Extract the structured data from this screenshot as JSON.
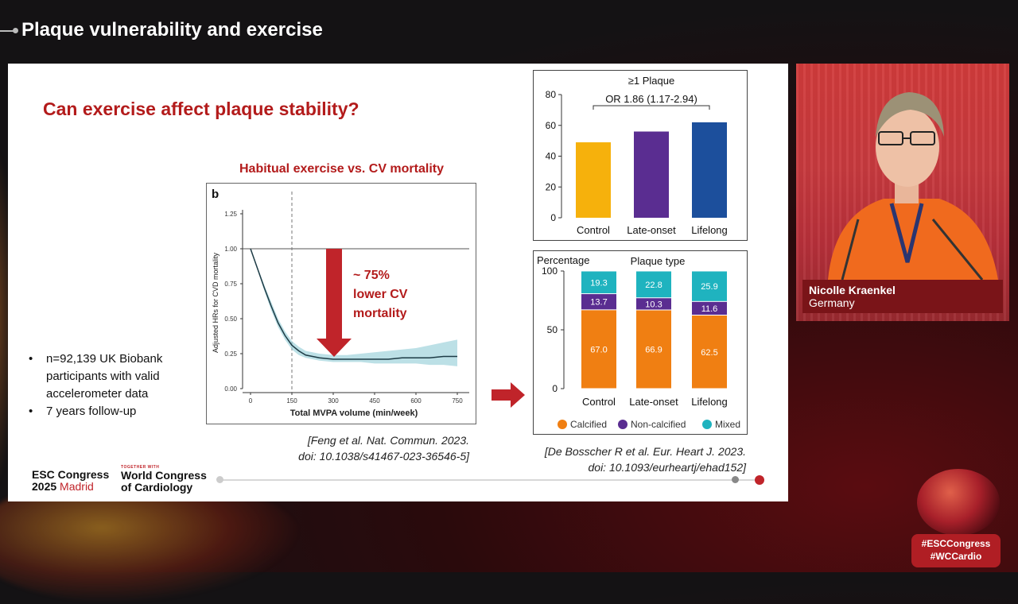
{
  "header": {
    "title": "Plaque vulnerability and exercise"
  },
  "slide": {
    "question": "Can exercise affect plaque stability?",
    "bullets": [
      "n=92,139 UK Biobank participants with valid accelerometer data",
      "7 years follow-up"
    ],
    "curve_chart": {
      "title": "Habitual exercise vs. CV mortality",
      "panel_label": "b",
      "annotation_line1": "~ 75%",
      "annotation_line2": "lower CV",
      "annotation_line3": "mortality",
      "citation_line1": "[Feng et al. Nat. Commun. 2023.",
      "citation_line2": "doi: 10.1038/s41467-023-36546-5]"
    },
    "bar_chart": {
      "citation_line1": "[De Bosscher R et al. Eur. Heart J. 2023.",
      "citation_line2": "doi: 10.1093/eurheartj/ehad152]"
    },
    "logo": {
      "esc_line1": "ESC Congress",
      "esc_line2_year": "2025",
      "esc_line2_city": "Madrid",
      "wcc_small": "TOGETHER WITH",
      "wcc_line1": "World Congress",
      "wcc_line2": "of Cardiology"
    }
  },
  "video": {
    "speaker_name": "Nicolle Kraenkel",
    "speaker_country": "Germany"
  },
  "hashtags": {
    "line1": "#ESCCongress",
    "line2": "#WCCardio"
  },
  "colors": {
    "accent_red": "#b31b1b",
    "calcified": "#f07f12",
    "non_calcified": "#5a2d91",
    "mixed": "#1fb3bf",
    "control": "#f6b10c",
    "late_onset": "#5a2d91",
    "lifelong": "#1c4f9c"
  },
  "chart_data": [
    {
      "type": "line",
      "title": "Habitual exercise vs. CV mortality",
      "xlabel": "Total MVPA volume (min/week)",
      "ylabel": "Adjusted HRs for CVD mortality",
      "xticks": [
        0,
        150,
        300,
        450,
        600,
        750
      ],
      "yticks": [
        "0.00",
        "0.25",
        "0.50",
        "0.75",
        "1.00",
        "1.25"
      ],
      "xlim": [
        0,
        750
      ],
      "ylim": [
        0,
        1.25
      ],
      "reference_line_x": 150,
      "reference_line_y": 1.0,
      "x": [
        0,
        25,
        50,
        75,
        100,
        125,
        150,
        175,
        200,
        250,
        300,
        350,
        400,
        450,
        500,
        550,
        600,
        650,
        700,
        750
      ],
      "y": [
        1.0,
        0.86,
        0.72,
        0.59,
        0.47,
        0.38,
        0.31,
        0.27,
        0.24,
        0.22,
        0.21,
        0.21,
        0.21,
        0.21,
        0.21,
        0.22,
        0.22,
        0.22,
        0.23,
        0.23
      ],
      "ci_lower": [
        1.0,
        0.85,
        0.7,
        0.56,
        0.44,
        0.35,
        0.28,
        0.24,
        0.22,
        0.2,
        0.19,
        0.19,
        0.19,
        0.18,
        0.18,
        0.18,
        0.18,
        0.17,
        0.17,
        0.16
      ],
      "ci_upper": [
        1.0,
        0.87,
        0.74,
        0.62,
        0.5,
        0.41,
        0.34,
        0.3,
        0.27,
        0.25,
        0.24,
        0.24,
        0.25,
        0.26,
        0.27,
        0.28,
        0.29,
        0.31,
        0.33,
        0.35
      ]
    },
    {
      "type": "bar",
      "title": "≥1 Plaque",
      "annotation": "OR 1.86 (1.17-2.94)",
      "categories": [
        "Control",
        "Late-onset",
        "Lifelong"
      ],
      "values": [
        49,
        56,
        62
      ],
      "ylim": [
        0,
        80
      ],
      "yticks": [
        0,
        20,
        40,
        60,
        80
      ],
      "colors": [
        "#f6b10c",
        "#5a2d91",
        "#1c4f9c"
      ]
    },
    {
      "type": "bar",
      "stacked": true,
      "title": "Plaque type",
      "ylabel": "Percentage",
      "categories": [
        "Control",
        "Late-onset",
        "Lifelong"
      ],
      "ylim": [
        0,
        100
      ],
      "yticks": [
        0,
        50,
        100
      ],
      "series": [
        {
          "name": "Calcified",
          "values": [
            67.0,
            66.9,
            62.5
          ],
          "color": "#f07f12"
        },
        {
          "name": "Non-calcified",
          "values": [
            13.7,
            10.3,
            11.6
          ],
          "color": "#5a2d91"
        },
        {
          "name": "Mixed",
          "values": [
            19.3,
            22.8,
            25.9
          ],
          "color": "#1fb3bf"
        }
      ],
      "legend": "bottom"
    }
  ]
}
